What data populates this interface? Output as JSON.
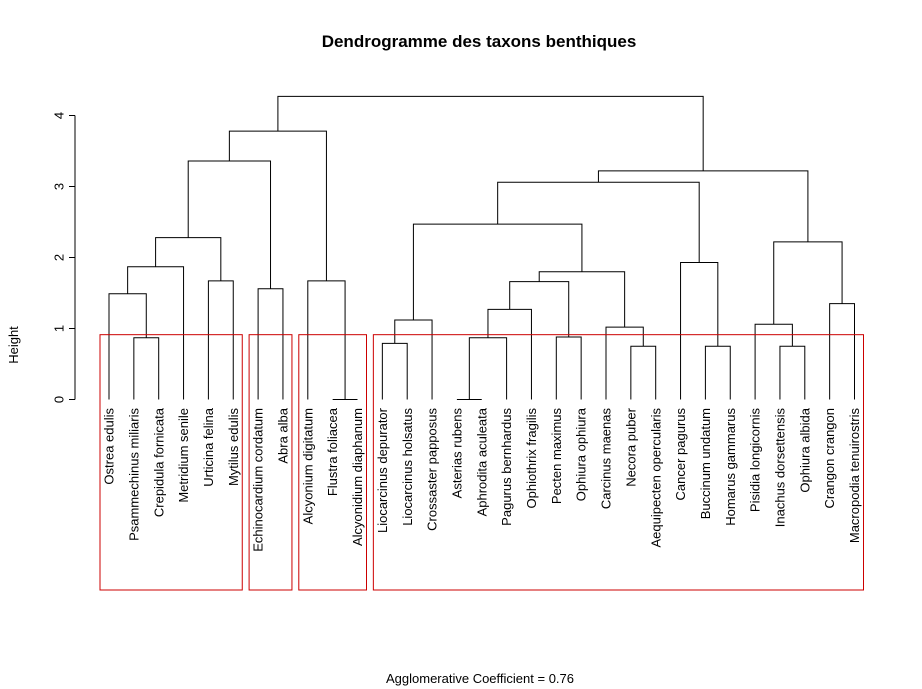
{
  "chart_data": {
    "type": "dendrogram",
    "title": "Dendrogramme des taxons benthiques",
    "ylabel": "Height",
    "xlabel": "Agglomerative Coefficient =  0.76",
    "ylim": [
      0,
      4.4
    ],
    "yticks": [
      "0",
      "1",
      "2",
      "3",
      "4"
    ],
    "leaves": [
      "Ostrea edulis",
      "Psammechinus miliaris",
      "Crepidula fornicata",
      "Metridium senile",
      "Urticina felina",
      "Mytilus edulis",
      "Echinocardium cordatum",
      "Abra alba",
      "Alcyonium digitatum",
      "Flustra foliacea",
      "Alcyonidium diaphanum",
      "Liocarcinus depurator",
      "Liocarcinus holsatus",
      "Crossaster papposus",
      "Asterias rubens",
      "Aphrodita aculeata",
      "Pagurus bernhardus",
      "Ophiothrix fragilis",
      "Pecten maximus",
      "Ophiura ophiura",
      "Carcinus maenas",
      "Necora puber",
      "Aequipecten opercularis",
      "Cancer pagurus",
      "Buccinum undatum",
      "Homarus gammarus",
      "Pisidia longicornis",
      "Inachus dorsettensis",
      "Ophiura albida",
      "Crangon crangon",
      "Macropodia tenuirostris"
    ],
    "merges": [
      {
        "left": 1,
        "right": 2,
        "height": 0.87
      },
      {
        "left": 0,
        "right": "m0",
        "height": 1.49
      },
      {
        "left": "m1",
        "right": 3,
        "height": 1.87
      },
      {
        "left": 4,
        "right": 5,
        "height": 1.67
      },
      {
        "left": "m2",
        "right": "m3",
        "height": 2.28
      },
      {
        "left": 6,
        "right": 7,
        "height": 1.56
      },
      {
        "left": "m4",
        "right": "m5",
        "height": 3.36
      },
      {
        "left": 9,
        "right": 10,
        "height": 0.0
      },
      {
        "left": 8,
        "right": "m7",
        "height": 1.67
      },
      {
        "left": "m6",
        "right": "m8",
        "height": 3.78
      },
      {
        "left": 11,
        "right": 12,
        "height": 0.79
      },
      {
        "left": "m10",
        "right": 13,
        "height": 1.12
      },
      {
        "left": 14,
        "right": 15,
        "height": 0.0
      },
      {
        "left": "m12",
        "right": 16,
        "height": 0.87
      },
      {
        "left": "m13",
        "right": 17,
        "height": 1.27
      },
      {
        "left": 18,
        "right": 19,
        "height": 0.88
      },
      {
        "left": "m14",
        "right": "m15",
        "height": 1.66
      },
      {
        "left": 21,
        "right": 22,
        "height": 0.75
      },
      {
        "left": 20,
        "right": "m17",
        "height": 1.02
      },
      {
        "left": "m16",
        "right": "m18",
        "height": 1.8
      },
      {
        "left": "m11",
        "right": "m19",
        "height": 2.47
      },
      {
        "left": 24,
        "right": 25,
        "height": 0.75
      },
      {
        "left": 23,
        "right": "m21",
        "height": 1.93
      },
      {
        "left": "m20",
        "right": "m22",
        "height": 3.06
      },
      {
        "left": 27,
        "right": 28,
        "height": 0.75
      },
      {
        "left": 26,
        "right": "m24",
        "height": 1.06
      },
      {
        "left": 29,
        "right": 30,
        "height": 1.35
      },
      {
        "left": "m25",
        "right": "m26",
        "height": 2.22
      },
      {
        "left": "m23",
        "right": "m27",
        "height": 3.22
      },
      {
        "left": "m9",
        "right": "m28",
        "height": 4.27
      }
    ],
    "cluster_boxes": [
      {
        "first_leaf": 0,
        "last_leaf": 5
      },
      {
        "first_leaf": 6,
        "last_leaf": 7
      },
      {
        "first_leaf": 8,
        "last_leaf": 10
      },
      {
        "first_leaf": 11,
        "last_leaf": 30
      }
    ],
    "cut_height": 0.92,
    "colors": {
      "branches": "#000000",
      "cluster_boxes": "#cc0000",
      "text": "#000000",
      "background": "#ffffff"
    }
  }
}
